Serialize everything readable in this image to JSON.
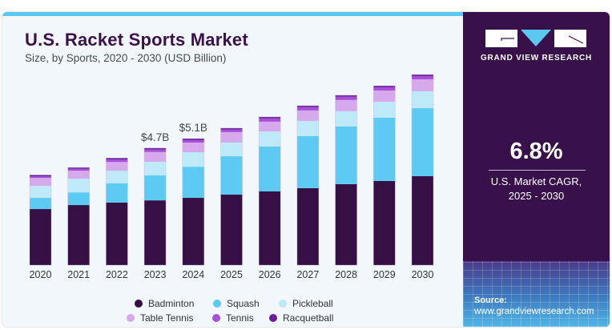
{
  "header": {
    "title": "U.S. Racket Sports Market",
    "subtitle": "Size, by Sports, 2020 - 2030 (USD Billion)"
  },
  "brand": {
    "name": "GRAND VIEW RESEARCH",
    "logo_icon": "gvr-logo-icon",
    "colors": {
      "panel": "#38114a",
      "accent": "#5bc8f0"
    }
  },
  "stat": {
    "value": "6.8%",
    "label_line1": "U.S. Market CAGR,",
    "label_line2": "2025 - 2030"
  },
  "source": {
    "label": "Source:",
    "url": "www.grandviewresearch.com"
  },
  "chart_data": {
    "type": "bar",
    "stacked": true,
    "title": "U.S. Racket Sports Market",
    "subtitle": "Size, by Sports, 2020 - 2030 (USD Billion)",
    "xlabel": "",
    "ylabel": "USD Billion",
    "ylim": [
      0,
      8
    ],
    "grid": false,
    "legend_position": "bottom",
    "categories": [
      "2020",
      "2021",
      "2022",
      "2023",
      "2024",
      "2025",
      "2026",
      "2027",
      "2028",
      "2029",
      "2030"
    ],
    "series": [
      {
        "name": "Badminton",
        "color": "#360f45",
        "values": [
          2.25,
          2.41,
          2.51,
          2.6,
          2.7,
          2.83,
          2.96,
          3.09,
          3.25,
          3.38,
          3.57
        ]
      },
      {
        "name": "Squash",
        "color": "#5ccaf3",
        "values": [
          0.45,
          0.51,
          0.77,
          1.0,
          1.25,
          1.54,
          1.8,
          2.09,
          2.32,
          2.54,
          2.73
        ]
      },
      {
        "name": "Pickleball",
        "color": "#bde9f9",
        "values": [
          0.48,
          0.55,
          0.51,
          0.55,
          0.58,
          0.55,
          0.61,
          0.61,
          0.61,
          0.64,
          0.68
        ]
      },
      {
        "name": "Table Tennis",
        "color": "#d5a9eb",
        "values": [
          0.32,
          0.32,
          0.35,
          0.39,
          0.39,
          0.42,
          0.39,
          0.42,
          0.45,
          0.45,
          0.48
        ]
      },
      {
        "name": "Tennis",
        "color": "#a64fd8",
        "values": [
          0.06,
          0.08,
          0.1,
          0.1,
          0.1,
          0.1,
          0.13,
          0.13,
          0.13,
          0.13,
          0.13
        ]
      },
      {
        "name": "Racquetball",
        "color": "#6a1f98",
        "values": [
          0.06,
          0.05,
          0.06,
          0.06,
          0.06,
          0.06,
          0.06,
          0.06,
          0.06,
          0.06,
          0.06
        ]
      }
    ],
    "annotations": [
      {
        "category": "2023",
        "text": "$4.7B"
      },
      {
        "category": "2024",
        "text": "$5.1B"
      }
    ]
  }
}
